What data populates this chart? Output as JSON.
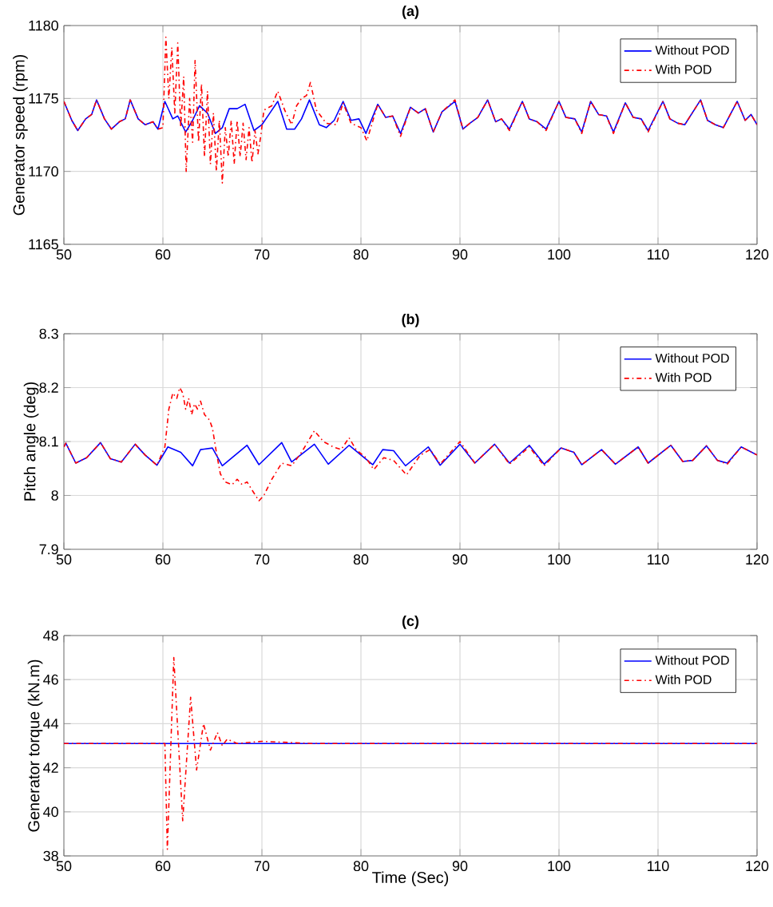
{
  "chart_data": [
    {
      "type": "line",
      "title": "(a)",
      "ylabel": "Generator speed (rpm)",
      "xlim": [
        50,
        120
      ],
      "ylim": [
        1165,
        1180
      ],
      "xticks": [
        50,
        60,
        70,
        80,
        90,
        100,
        110,
        120
      ],
      "yticks": [
        1165,
        1170,
        1175,
        1180
      ],
      "grid": true,
      "legend": "top right",
      "series": [
        {
          "name": "Without POD",
          "color": "#0000ff",
          "line_style": "solid",
          "x": [
            50,
            50.8,
            51.4,
            52.2,
            52.8,
            53.3,
            54.1,
            54.8,
            55.6,
            56.2,
            56.7,
            57.5,
            58.2,
            59,
            59.5,
            60.2,
            61,
            61.5,
            62.3,
            63,
            63.7,
            64.5,
            65.3,
            66,
            66.7,
            67.5,
            68.3,
            69.2,
            70,
            70.8,
            71.6,
            72.5,
            73.3,
            74,
            74.8,
            75.8,
            76.5,
            77.3,
            78.2,
            79,
            79.8,
            80.5,
            81.7,
            82.5,
            83.2,
            84,
            85,
            85.8,
            86.5,
            87.3,
            88.2,
            89.5,
            90.3,
            91,
            91.8,
            92.8,
            93.6,
            94.2,
            95,
            96.3,
            97,
            97.8,
            98.7,
            100,
            100.7,
            101.6,
            102.3,
            103.2,
            104,
            104.8,
            105.5,
            106.7,
            107.5,
            108.3,
            109,
            110.5,
            111.2,
            112,
            112.7,
            114.3,
            115,
            115.8,
            116.6,
            118,
            118.8,
            119.4,
            120
          ],
          "values": [
            1174.8,
            1173.5,
            1172.8,
            1173.6,
            1173.9,
            1174.9,
            1173.6,
            1172.9,
            1173.4,
            1173.6,
            1174.9,
            1173.6,
            1173.2,
            1173.4,
            1172.9,
            1174.8,
            1173.6,
            1173.8,
            1172.7,
            1173.5,
            1174.5,
            1174.0,
            1172.6,
            1173.0,
            1174.3,
            1174.3,
            1174.6,
            1172.8,
            1173.2,
            1174.0,
            1174.8,
            1172.9,
            1172.9,
            1173.6,
            1174.9,
            1173.2,
            1173.0,
            1173.5,
            1174.8,
            1173.5,
            1173.6,
            1172.6,
            1174.6,
            1173.7,
            1173.8,
            1172.6,
            1174.4,
            1174.0,
            1174.3,
            1172.7,
            1174.1,
            1174.8,
            1172.9,
            1173.3,
            1173.7,
            1174.9,
            1173.4,
            1173.6,
            1172.9,
            1174.8,
            1173.6,
            1173.4,
            1172.9,
            1174.8,
            1173.7,
            1173.6,
            1172.7,
            1174.8,
            1173.9,
            1173.8,
            1172.7,
            1174.7,
            1173.7,
            1173.6,
            1172.8,
            1174.8,
            1173.6,
            1173.3,
            1173.2,
            1174.9,
            1173.5,
            1173.2,
            1173.0,
            1174.8,
            1173.5,
            1173.9,
            1173.2
          ]
        },
        {
          "name": "With POD",
          "color": "#ff0000",
          "line_style": "dashdot",
          "x": [
            50,
            50.8,
            51.4,
            52.2,
            52.8,
            53.3,
            54.1,
            54.8,
            55.6,
            56.2,
            56.7,
            57.5,
            58.2,
            59,
            59.5,
            60,
            60.3,
            60.6,
            60.9,
            61.2,
            61.5,
            61.8,
            62.1,
            62.35,
            62.7,
            63,
            63.25,
            63.6,
            63.9,
            64.2,
            64.5,
            64.8,
            65.1,
            65.4,
            65.7,
            66,
            66.3,
            66.6,
            66.9,
            67.2,
            67.5,
            67.8,
            68.1,
            68.4,
            68.7,
            69,
            69.3,
            69.6,
            69.9,
            70.2,
            71,
            71.6,
            72.3,
            73,
            73.5,
            74,
            74.5,
            74.9,
            75.5,
            76.5,
            77.5,
            78.2,
            79,
            80,
            80.6,
            81.7,
            82.5,
            83.2,
            84,
            85,
            85.8,
            86.5,
            87.3,
            88.2,
            89.5,
            90.3,
            91,
            91.8,
            92.8,
            93.6,
            94.2,
            95,
            96.3,
            97,
            97.8,
            98.7,
            100,
            100.7,
            101.6,
            102.3,
            103.2,
            104,
            104.8,
            105.5,
            106.7,
            107.5,
            108.3,
            109,
            110.5,
            111.2,
            112,
            112.7,
            114.3,
            115,
            115.8,
            116.6,
            118,
            118.8,
            119.4,
            120
          ],
          "values": [
            1174.8,
            1173.5,
            1172.8,
            1173.6,
            1173.9,
            1174.9,
            1173.6,
            1172.9,
            1173.4,
            1173.6,
            1174.9,
            1173.6,
            1173.2,
            1173.4,
            1172.9,
            1173.0,
            1179.2,
            1175.0,
            1178.5,
            1174.0,
            1178.8,
            1173.0,
            1176.5,
            1170.0,
            1175.0,
            1172.0,
            1177.6,
            1172.0,
            1176.0,
            1171.0,
            1175.5,
            1170.5,
            1174.0,
            1170.0,
            1173.5,
            1169.2,
            1173.0,
            1171.0,
            1173.5,
            1170.5,
            1173.5,
            1171.0,
            1173.3,
            1170.8,
            1173.0,
            1170.6,
            1172.8,
            1171.2,
            1172.5,
            1174.2,
            1174.5,
            1175.5,
            1174.2,
            1173.2,
            1174.5,
            1175.0,
            1175.2,
            1176.1,
            1174.2,
            1173.3,
            1173.2,
            1174.7,
            1173.3,
            1173.0,
            1172.1,
            1174.6,
            1173.7,
            1173.8,
            1172.4,
            1174.4,
            1174.0,
            1174.3,
            1172.7,
            1174.1,
            1174.9,
            1172.9,
            1173.3,
            1173.7,
            1174.9,
            1173.4,
            1173.6,
            1172.8,
            1174.8,
            1173.6,
            1173.4,
            1172.8,
            1174.8,
            1173.7,
            1173.6,
            1172.6,
            1174.8,
            1173.9,
            1173.8,
            1172.6,
            1174.7,
            1173.7,
            1173.6,
            1172.7,
            1174.8,
            1173.6,
            1173.3,
            1173.2,
            1174.9,
            1173.5,
            1173.2,
            1173.0,
            1174.8,
            1173.5,
            1173.9,
            1173.2
          ]
        }
      ]
    },
    {
      "type": "line",
      "title": "(b)",
      "ylabel": "Pitch angle (deg)",
      "xlim": [
        50,
        120
      ],
      "ylim": [
        7.9,
        8.3
      ],
      "xticks": [
        50,
        60,
        70,
        80,
        90,
        100,
        110,
        120
      ],
      "yticks": [
        7.9,
        8,
        8.1,
        8.2,
        8.3
      ],
      "grid": true,
      "legend": "top right",
      "series": [
        {
          "name": "Without POD",
          "color": "#0000ff",
          "line_style": "solid",
          "x": [
            50,
            50.2,
            51.2,
            52.3,
            53.7,
            54.7,
            55.8,
            57.2,
            58.2,
            59.4,
            60.5,
            61.8,
            63,
            63.8,
            65,
            66,
            68.5,
            69.7,
            72,
            73,
            75.3,
            76.7,
            78.8,
            80,
            81.2,
            82.2,
            83.3,
            84.5,
            86.8,
            88,
            90,
            91.5,
            93.5,
            95,
            97,
            98.5,
            100.2,
            101.5,
            102.3,
            104.3,
            105.7,
            108,
            109,
            111.3,
            112.5,
            113.5,
            114.9,
            116,
            117,
            118.4,
            120
          ],
          "values": [
            8.09,
            8.097,
            8.06,
            8.07,
            8.098,
            8.068,
            8.062,
            8.095,
            8.075,
            8.056,
            8.09,
            8.08,
            8.055,
            8.085,
            8.088,
            8.055,
            8.093,
            8.057,
            8.098,
            8.062,
            8.095,
            8.058,
            8.093,
            8.075,
            8.057,
            8.085,
            8.083,
            8.055,
            8.09,
            8.056,
            8.095,
            8.06,
            8.095,
            8.06,
            8.093,
            8.058,
            8.088,
            8.08,
            8.057,
            8.085,
            8.058,
            8.09,
            8.06,
            8.093,
            8.063,
            8.065,
            8.092,
            8.065,
            8.06,
            8.09,
            8.075
          ]
        },
        {
          "name": "With POD",
          "color": "#ff0000",
          "line_style": "dashdot",
          "x": [
            50,
            50.2,
            51.2,
            52.3,
            53.7,
            54.7,
            55.8,
            57.2,
            58.2,
            59.4,
            60.2,
            60.6,
            61,
            61.4,
            61.7,
            62,
            62.3,
            62.6,
            62.9,
            63.2,
            63.5,
            63.8,
            64.2,
            64.7,
            65,
            65.4,
            65.8,
            66.3,
            67,
            67.5,
            68,
            68.5,
            69,
            69.7,
            70.2,
            71,
            72,
            73,
            74,
            75.3,
            76.2,
            77.2,
            78,
            78.8,
            79.5,
            80.5,
            81.3,
            82.3,
            83.3,
            84.6,
            86,
            87,
            88,
            90,
            91.5,
            93.5,
            95,
            97,
            98.5,
            100.2,
            101.5,
            102.3,
            104.3,
            105.7,
            108,
            109,
            111.3,
            112.5,
            113.5,
            114.9,
            116,
            117,
            118.4,
            120
          ],
          "values": [
            8.09,
            8.097,
            8.06,
            8.07,
            8.098,
            8.068,
            8.062,
            8.095,
            8.075,
            8.056,
            8.09,
            8.16,
            8.19,
            8.18,
            8.2,
            8.19,
            8.16,
            8.18,
            8.15,
            8.17,
            8.16,
            8.175,
            8.15,
            8.14,
            8.125,
            8.08,
            8.04,
            8.025,
            8.02,
            8.03,
            8.02,
            8.025,
            8.01,
            7.99,
            8.0,
            8.03,
            8.06,
            8.055,
            8.08,
            8.12,
            8.1,
            8.09,
            8.085,
            8.107,
            8.085,
            8.07,
            8.048,
            8.07,
            8.065,
            8.038,
            8.075,
            8.085,
            8.058,
            8.1,
            8.06,
            8.095,
            8.058,
            8.09,
            8.055,
            8.088,
            8.08,
            8.057,
            8.085,
            8.058,
            8.09,
            8.06,
            8.093,
            8.063,
            8.065,
            8.092,
            8.065,
            8.058,
            8.09,
            8.075
          ]
        }
      ]
    },
    {
      "type": "line",
      "title": "(c)",
      "xlabel": "Time (Sec)",
      "ylabel": "Generator torque (kN.m)",
      "xlim": [
        50,
        120
      ],
      "ylim": [
        38,
        48
      ],
      "xticks": [
        50,
        60,
        70,
        80,
        90,
        100,
        110,
        120
      ],
      "yticks": [
        38,
        40,
        42,
        44,
        46,
        48
      ],
      "grid": true,
      "legend": "top right",
      "series": [
        {
          "name": "Without POD",
          "color": "#0000ff",
          "line_style": "solid",
          "x": [
            50,
            60,
            70,
            80,
            90,
            100,
            110,
            120
          ],
          "values": [
            43.1,
            43.1,
            43.1,
            43.1,
            43.1,
            43.1,
            43.1,
            43.1
          ]
        },
        {
          "name": "With POD",
          "color": "#ff0000",
          "line_style": "dashdot",
          "x": [
            50,
            55,
            60.2,
            60.45,
            61.1,
            62,
            62.8,
            63.4,
            64.1,
            64.8,
            65.5,
            66,
            66.5,
            67.5,
            70,
            75,
            80,
            90,
            100,
            110,
            120
          ],
          "values": [
            43.1,
            43.1,
            43.1,
            38.3,
            47.0,
            39.6,
            45.2,
            41.9,
            44.0,
            42.8,
            43.6,
            43.0,
            43.3,
            43.1,
            43.2,
            43.1,
            43.1,
            43.1,
            43.1,
            43.1,
            43.1
          ]
        }
      ]
    }
  ]
}
